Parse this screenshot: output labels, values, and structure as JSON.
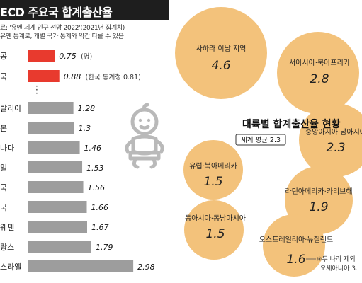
{
  "title": "ECD 주요국 합계출산율",
  "source_line1": "료: '유엔 세계 인구 전망 2022'(2021년 집계치)",
  "source_line2": "유엔 통계로, 개별 국가 통계와 약간 다를 수 있음",
  "icons": {
    "baby": "baby-illustration"
  },
  "colors": {
    "highlight_bar": "#e83a2e",
    "normal_bar": "#9d9d9d",
    "bubble": "#f3c27b",
    "dark": "#1e1e1e"
  },
  "chart_data": [
    {
      "type": "bar",
      "orientation": "horizontal",
      "title": "ECD 주요국 합계출산율",
      "categories": [
        "콩",
        "국",
        "탈리아",
        "본",
        "나다",
        "일",
        "국",
        "국",
        "웨덴",
        "랑스",
        "스라엘"
      ],
      "values": [
        0.75,
        0.88,
        1.28,
        1.3,
        1.46,
        1.53,
        1.56,
        1.66,
        1.67,
        1.79,
        2.98
      ],
      "value_labels": [
        "0.75",
        "0.88",
        "1.28",
        "1.3",
        "1.46",
        "1.53",
        "1.56",
        "1.66",
        "1.67",
        "1.79",
        "2.98"
      ],
      "highlighted": [
        true,
        true,
        false,
        false,
        false,
        false,
        false,
        false,
        false,
        false,
        false
      ],
      "annotations": [
        "(명)",
        "(한국 통계청 0.81)",
        "",
        "",
        "",
        "",
        "",
        "",
        "",
        "",
        ""
      ],
      "xlim": [
        0,
        3
      ]
    },
    {
      "type": "bubble",
      "title": "대륙별 합계출산율 현황",
      "subtitle": "세계 평균 2.3",
      "footnote_line1": "※두 나라 제외",
      "footnote_line2": "오세아니아 3.",
      "categories": [
        "사하라 이남 지역",
        "서아시아·북아프리카",
        "중앙아시아·남아시아",
        "유럽·북아메리카",
        "라틴아메리카·카리브해",
        "동아시아·동남아시아",
        "오스트레일리아·뉴질랜드"
      ],
      "values": [
        4.6,
        2.8,
        2.3,
        1.5,
        1.9,
        1.5,
        1.6
      ],
      "value_labels": [
        "4.6",
        "2.8",
        "2.3",
        "1.5",
        "1.9",
        "1.5",
        "1.6"
      ]
    }
  ]
}
